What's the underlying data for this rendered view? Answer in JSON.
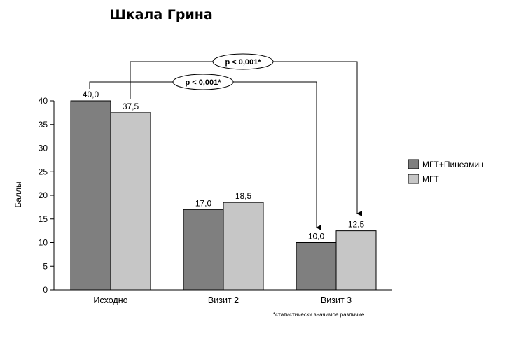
{
  "chart_data": {
    "type": "bar",
    "title": "Шкала Грина",
    "ylabel": "Баллы",
    "xlabel": "",
    "categories": [
      "Исходно",
      "Визит 2",
      "Визит 3"
    ],
    "ylim": [
      0,
      40
    ],
    "yticks": [
      "0",
      "5",
      "10",
      "15",
      "20",
      "25",
      "30",
      "35",
      "40"
    ],
    "series": [
      {
        "name": "МГТ+Пинеамин",
        "values": [
          40.0,
          17.0,
          10.0
        ],
        "labels": [
          "40,0",
          "17,0",
          "10,0"
        ],
        "color": "#7f7f7f"
      },
      {
        "name": "МГТ",
        "values": [
          37.5,
          18.5,
          12.5
        ],
        "labels": [
          "37,5",
          "18,5",
          "12,5"
        ],
        "color": "#c6c6c6"
      }
    ],
    "grid": false,
    "legend_position": "right",
    "annotations": [
      {
        "text": "p < 0,001*",
        "from": "Исходно / МГТ",
        "to": "Визит 3 / МГТ"
      },
      {
        "text": "p < 0,001*",
        "from": "Исходно / МГТ+Пинеамин",
        "to": "Визит 3 / МГТ+Пинеамин"
      }
    ],
    "footnote": "*статистически значимое различие"
  }
}
